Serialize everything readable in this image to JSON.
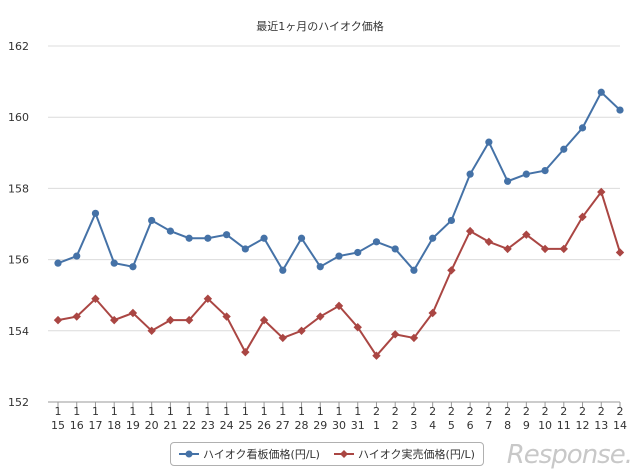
{
  "chart_data": {
    "type": "line",
    "title": "最近1ヶ月のハイオク価格",
    "categories": [
      [
        "1",
        "15"
      ],
      [
        "1",
        "16"
      ],
      [
        "1",
        "17"
      ],
      [
        "1",
        "18"
      ],
      [
        "1",
        "19"
      ],
      [
        "1",
        "20"
      ],
      [
        "1",
        "21"
      ],
      [
        "1",
        "22"
      ],
      [
        "1",
        "23"
      ],
      [
        "1",
        "24"
      ],
      [
        "1",
        "25"
      ],
      [
        "1",
        "26"
      ],
      [
        "1",
        "27"
      ],
      [
        "1",
        "28"
      ],
      [
        "1",
        "29"
      ],
      [
        "1",
        "30"
      ],
      [
        "1",
        "31"
      ],
      [
        "2",
        "1"
      ],
      [
        "2",
        "2"
      ],
      [
        "2",
        "3"
      ],
      [
        "2",
        "4"
      ],
      [
        "2",
        "5"
      ],
      [
        "2",
        "6"
      ],
      [
        "2",
        "7"
      ],
      [
        "2",
        "8"
      ],
      [
        "2",
        "9"
      ],
      [
        "2",
        "10"
      ],
      [
        "2",
        "11"
      ],
      [
        "2",
        "12"
      ],
      [
        "2",
        "13"
      ],
      [
        "2",
        "14"
      ]
    ],
    "series": [
      {
        "name": "ハイオク看板価格(円/L)",
        "color": "#4572a7",
        "marker": "circle",
        "values": [
          155.9,
          156.1,
          157.3,
          155.9,
          155.8,
          157.1,
          156.8,
          156.6,
          156.6,
          156.7,
          156.3,
          156.6,
          155.7,
          156.6,
          155.8,
          156.1,
          156.2,
          156.5,
          156.3,
          155.7,
          156.6,
          157.1,
          158.4,
          159.3,
          158.2,
          158.4,
          158.5,
          159.1,
          159.7,
          160.7,
          160.2
        ]
      },
      {
        "name": "ハイオク実売価格(円/L)",
        "color": "#aa4643",
        "marker": "diamond",
        "values": [
          154.3,
          154.4,
          154.9,
          154.3,
          154.5,
          154.0,
          154.3,
          154.3,
          154.9,
          154.4,
          153.4,
          154.3,
          153.8,
          154.0,
          154.4,
          154.7,
          154.1,
          153.3,
          153.9,
          153.8,
          154.5,
          155.7,
          156.8,
          156.5,
          156.3,
          156.7,
          156.3,
          156.3,
          157.2,
          157.9,
          156.2
        ]
      }
    ],
    "yticks": [
      152,
      154,
      156,
      158,
      160,
      162
    ],
    "ylim": [
      152,
      162
    ],
    "grid": true,
    "legend_position": "bottom"
  },
  "watermark": "Response."
}
